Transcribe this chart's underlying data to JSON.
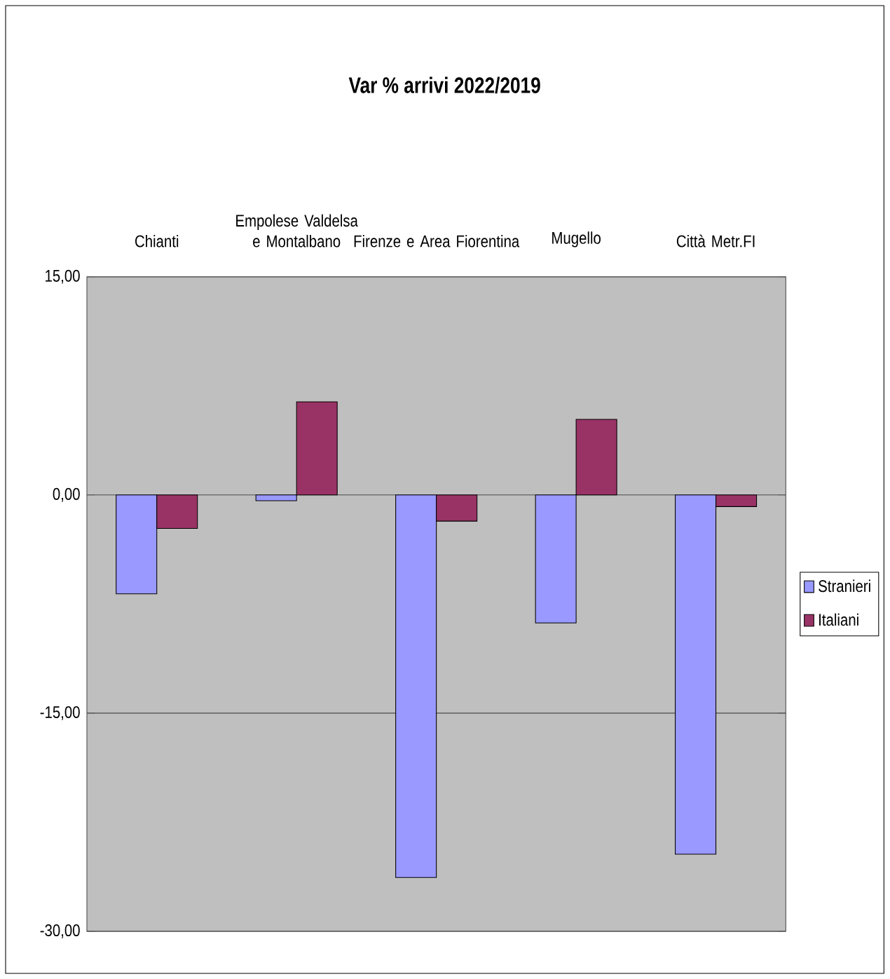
{
  "chart_data": {
    "type": "bar",
    "title": "Var % arrivi 2022/2019",
    "categories": [
      "Chianti",
      "Empolese Valdelsa e Montalbano",
      "Firenze e Area Fiorentina",
      "Mugello",
      "Città Metr.FI"
    ],
    "series": [
      {
        "name": "Stranieri",
        "color": "#9999ff",
        "values": [
          -6.8,
          -0.4,
          -26.3,
          -8.8,
          -24.7
        ]
      },
      {
        "name": "Italiani",
        "color": "#993366",
        "values": [
          -2.3,
          6.4,
          -1.8,
          5.2,
          -0.8
        ]
      }
    ],
    "ylim": [
      -30,
      15
    ],
    "yticks": [
      {
        "value": -30,
        "label": "-30,00"
      },
      {
        "value": -15,
        "label": "-15,00"
      },
      {
        "value": 0,
        "label": "0,00"
      },
      {
        "value": 15,
        "label": "15,00"
      }
    ],
    "grid": "y",
    "legend": "right"
  }
}
